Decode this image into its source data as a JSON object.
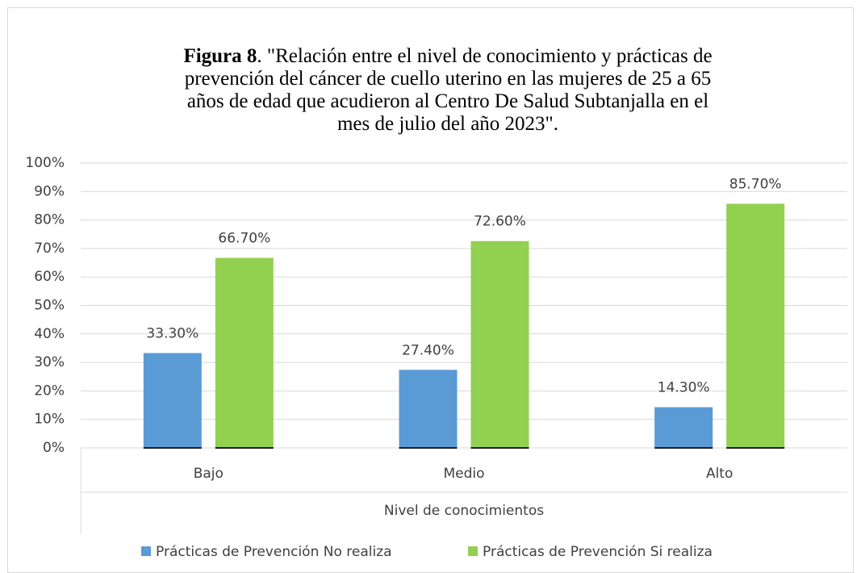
{
  "chart_data": {
    "type": "bar",
    "title_prefix": "Figura 8",
    "title": ". \"Relación entre el nivel de conocimiento y prácticas de prevención del cáncer de cuello uterino en las mujeres de 25 a 65 años de edad que acudieron al Centro De Salud Subtanjalla en el mes de julio del año 2023\".",
    "x_label": "Nivel de conocimientos",
    "categories": [
      "Bajo",
      "Medio",
      "Alto"
    ],
    "series": [
      {
        "name": "Prácticas de Prevención No realiza",
        "color": "#5b9bd5",
        "values": [
          33.3,
          27.4,
          14.3
        ],
        "value_labels": [
          "33.30%",
          "27.40%",
          "14.30%"
        ]
      },
      {
        "name": "Prácticas de Prevención Si realiza",
        "color": "#92d050",
        "values": [
          66.7,
          72.6,
          85.7
        ],
        "value_labels": [
          "66.70%",
          "72.60%",
          "85.70%"
        ]
      }
    ],
    "ylim": [
      0,
      100
    ],
    "yticks": [
      {
        "value": 0,
        "label": "0%"
      },
      {
        "value": 10,
        "label": "10%"
      },
      {
        "value": 20,
        "label": "20%"
      },
      {
        "value": 30,
        "label": "30%"
      },
      {
        "value": 40,
        "label": "40%"
      },
      {
        "value": 50,
        "label": "50%"
      },
      {
        "value": 60,
        "label": "60%"
      },
      {
        "value": 70,
        "label": "70%"
      },
      {
        "value": 80,
        "label": "80%"
      },
      {
        "value": 90,
        "label": "90%"
      },
      {
        "value": 100,
        "label": "100%"
      }
    ],
    "grid": true,
    "legend": "bottom"
  }
}
